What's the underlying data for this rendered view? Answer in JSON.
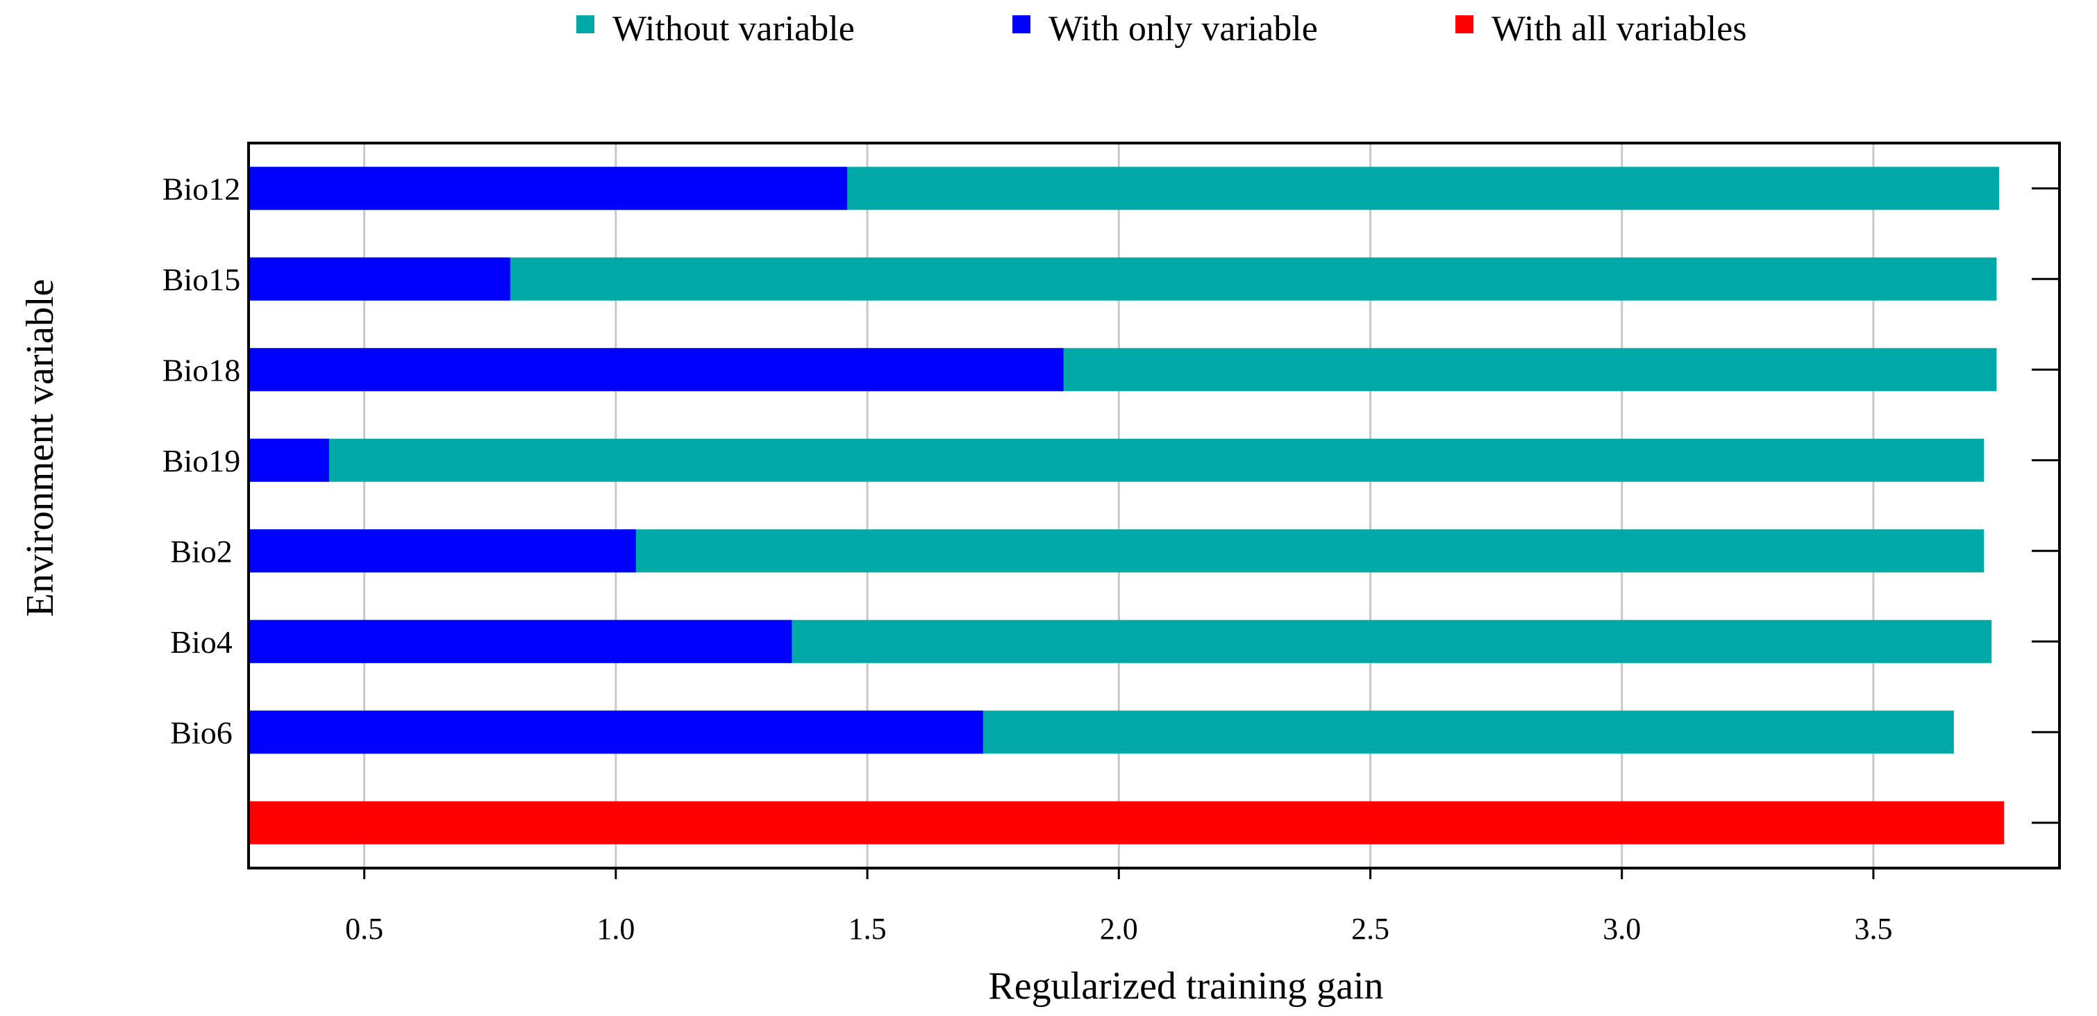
{
  "chart_data": {
    "type": "bar",
    "orientation": "horizontal",
    "xlabel": "Regularized training gain",
    "ylabel": "Environment variable",
    "xlim": [
      0.27,
      3.87
    ],
    "xticks": [
      0.5,
      1.0,
      1.5,
      2.0,
      2.5,
      3.0,
      3.5
    ],
    "xtick_labels": [
      "0.5",
      "1.0",
      "1.5",
      "2.0",
      "2.5",
      "3.0",
      "3.5"
    ],
    "grid": "vertical",
    "legend_position": "top",
    "categories": [
      "Bio12",
      "Bio15",
      "Bio18",
      "Bio19",
      "Bio2",
      "Bio4",
      "Bio6",
      ""
    ],
    "series": [
      {
        "name": "Without variable",
        "color": "#00a8a8",
        "values": [
          3.75,
          3.745,
          3.745,
          3.72,
          3.72,
          3.735,
          3.66,
          null
        ]
      },
      {
        "name": "With only variable",
        "color": "#0000ff",
        "values": [
          1.46,
          0.79,
          1.89,
          0.43,
          1.04,
          1.35,
          1.73,
          null
        ]
      },
      {
        "name": "With all variables",
        "color": "#ff0000",
        "values": [
          null,
          null,
          null,
          null,
          null,
          null,
          null,
          3.76
        ]
      }
    ]
  }
}
